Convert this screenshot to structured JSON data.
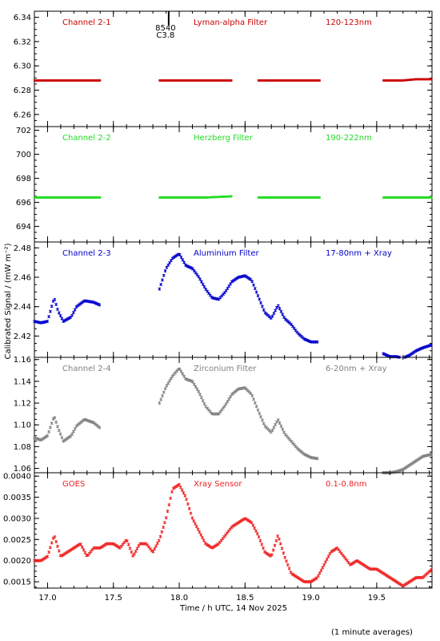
{
  "chart_data": {
    "type": "scatter",
    "xlabel": "Time / h UTC, 14 Nov 2025",
    "ylabel": "Calibrated Signal / (mW m⁻²)",
    "footnote": "(1 minute averages)",
    "xlim": [
      16.9,
      19.92
    ],
    "xticks": [
      "17.0",
      "17.5",
      "18.0",
      "18.5",
      "19.0",
      "19.5"
    ],
    "marker": {
      "text": "8540\nC3.8",
      "x": 17.92
    },
    "panels": [
      {
        "channel": "Channel 2-1",
        "filter": "Lyman-alpha Filter",
        "band": "120-123nm",
        "color": "#cc0000",
        "ylim": [
          6.25,
          6.345
        ],
        "yticks": [
          "6.26",
          "6.28",
          "6.30",
          "6.32",
          "6.34"
        ],
        "x": [
          16.9,
          17.0,
          17.1,
          17.2,
          17.3,
          17.4,
          17.85,
          18.0,
          18.2,
          18.4,
          18.6,
          18.8,
          19.0,
          19.07,
          19.55,
          19.7,
          19.8,
          19.92
        ],
        "y": [
          6.288,
          6.288,
          6.288,
          6.288,
          6.288,
          6.288,
          6.288,
          6.288,
          6.288,
          6.288,
          6.288,
          6.288,
          6.288,
          6.288,
          6.288,
          6.288,
          6.289,
          6.289
        ]
      },
      {
        "channel": "Channel 2-2",
        "filter": "Herzberg Filter",
        "band": "190-222nm",
        "color": "#22dd22",
        "ylim": [
          692.7,
          702.3
        ],
        "yticks": [
          "694",
          "696",
          "698",
          "700",
          "702"
        ],
        "x": [
          16.9,
          17.0,
          17.1,
          17.2,
          17.3,
          17.4,
          17.85,
          18.0,
          18.2,
          18.4,
          18.6,
          18.8,
          19.0,
          19.07,
          19.55,
          19.7,
          19.8,
          19.92
        ],
        "y": [
          696.4,
          696.4,
          696.4,
          696.4,
          696.4,
          696.4,
          696.4,
          696.4,
          696.4,
          696.5,
          696.4,
          696.4,
          696.4,
          696.4,
          696.4,
          696.4,
          696.4,
          696.4
        ]
      },
      {
        "channel": "Channel 2-3",
        "filter": "Aluminium Filter",
        "band": "17-80nm + Xray",
        "color": "#0000cc",
        "ylim": [
          2.4055,
          2.484
        ],
        "yticks": [
          "2.42",
          "2.44",
          "2.46",
          "2.48"
        ],
        "x": [
          16.9,
          16.95,
          17.0,
          17.05,
          17.08,
          17.12,
          17.18,
          17.22,
          17.28,
          17.35,
          17.4,
          17.85,
          17.9,
          17.95,
          18.0,
          18.05,
          18.1,
          18.15,
          18.2,
          18.25,
          18.3,
          18.35,
          18.4,
          18.45,
          18.5,
          18.55,
          18.6,
          18.65,
          18.7,
          18.75,
          18.8,
          18.85,
          18.9,
          18.95,
          19.0,
          19.05,
          19.55,
          19.6,
          19.65,
          19.7,
          19.75,
          19.8,
          19.85,
          19.92
        ],
        "y": [
          2.43,
          2.429,
          2.43,
          2.446,
          2.437,
          2.43,
          2.433,
          2.44,
          2.444,
          2.443,
          2.441,
          2.452,
          2.466,
          2.473,
          2.476,
          2.468,
          2.466,
          2.46,
          2.452,
          2.446,
          2.445,
          2.45,
          2.457,
          2.46,
          2.461,
          2.458,
          2.447,
          2.436,
          2.432,
          2.441,
          2.432,
          2.428,
          2.422,
          2.418,
          2.416,
          2.416,
          2.408,
          2.406,
          2.406,
          2.405,
          2.407,
          2.41,
          2.412,
          2.414
        ]
      },
      {
        "channel": "Channel 2-4",
        "filter": "Zirconium Filter",
        "band": "6-20nm + Xray",
        "color": "#808080",
        "ylim": [
          1.056,
          1.162
        ],
        "yticks": [
          "1.06",
          "1.08",
          "1.10",
          "1.12",
          "1.14",
          "1.16"
        ],
        "x": [
          16.9,
          16.95,
          17.0,
          17.05,
          17.08,
          17.12,
          17.18,
          17.22,
          17.28,
          17.35,
          17.4,
          17.85,
          17.9,
          17.95,
          18.0,
          18.05,
          18.1,
          18.15,
          18.2,
          18.25,
          18.3,
          18.35,
          18.4,
          18.45,
          18.5,
          18.55,
          18.6,
          18.65,
          18.7,
          18.75,
          18.8,
          18.85,
          18.9,
          18.95,
          19.0,
          19.05,
          19.55,
          19.6,
          19.65,
          19.7,
          19.75,
          19.8,
          19.85,
          19.92
        ],
        "y": [
          1.088,
          1.086,
          1.09,
          1.108,
          1.097,
          1.085,
          1.09,
          1.099,
          1.105,
          1.102,
          1.097,
          1.12,
          1.135,
          1.145,
          1.152,
          1.142,
          1.14,
          1.13,
          1.117,
          1.11,
          1.11,
          1.118,
          1.128,
          1.133,
          1.134,
          1.128,
          1.113,
          1.099,
          1.093,
          1.105,
          1.092,
          1.085,
          1.078,
          1.073,
          1.07,
          1.069,
          1.056,
          1.056,
          1.057,
          1.059,
          1.063,
          1.067,
          1.071,
          1.073
        ]
      },
      {
        "channel": "GOES",
        "filter": "Xray Sensor",
        "band": "0.1-0.8nm",
        "color": "#ee2222",
        "ylim": [
          0.00135,
          0.00408
        ],
        "yticks": [
          "0.0015",
          "0.0020",
          "0.0025",
          "0.0030",
          "0.0035",
          "0.0040"
        ],
        "x": [
          16.9,
          16.95,
          17.0,
          17.05,
          17.1,
          17.15,
          17.2,
          17.25,
          17.3,
          17.35,
          17.4,
          17.45,
          17.5,
          17.55,
          17.6,
          17.65,
          17.7,
          17.75,
          17.8,
          17.85,
          17.9,
          17.95,
          18.0,
          18.05,
          18.1,
          18.15,
          18.2,
          18.25,
          18.3,
          18.35,
          18.4,
          18.45,
          18.5,
          18.55,
          18.6,
          18.65,
          18.7,
          18.75,
          18.8,
          18.85,
          18.9,
          18.95,
          19.0,
          19.05,
          19.1,
          19.15,
          19.2,
          19.25,
          19.3,
          19.35,
          19.4,
          19.45,
          19.5,
          19.55,
          19.6,
          19.65,
          19.7,
          19.75,
          19.8,
          19.85,
          19.92
        ],
        "y": [
          0.002,
          0.002,
          0.0021,
          0.0026,
          0.0021,
          0.0022,
          0.0023,
          0.0024,
          0.0021,
          0.0023,
          0.0023,
          0.0024,
          0.0024,
          0.0023,
          0.0025,
          0.0021,
          0.0024,
          0.0024,
          0.0022,
          0.0025,
          0.003,
          0.0037,
          0.0038,
          0.0035,
          0.003,
          0.0027,
          0.0024,
          0.0023,
          0.0024,
          0.0026,
          0.0028,
          0.0029,
          0.003,
          0.0029,
          0.0026,
          0.0022,
          0.0021,
          0.0026,
          0.0021,
          0.0017,
          0.0016,
          0.0015,
          0.0015,
          0.0016,
          0.0019,
          0.0022,
          0.0023,
          0.0021,
          0.0019,
          0.002,
          0.0019,
          0.0018,
          0.0018,
          0.0017,
          0.0016,
          0.0015,
          0.0014,
          0.0015,
          0.0016,
          0.0016,
          0.0018
        ]
      }
    ]
  }
}
